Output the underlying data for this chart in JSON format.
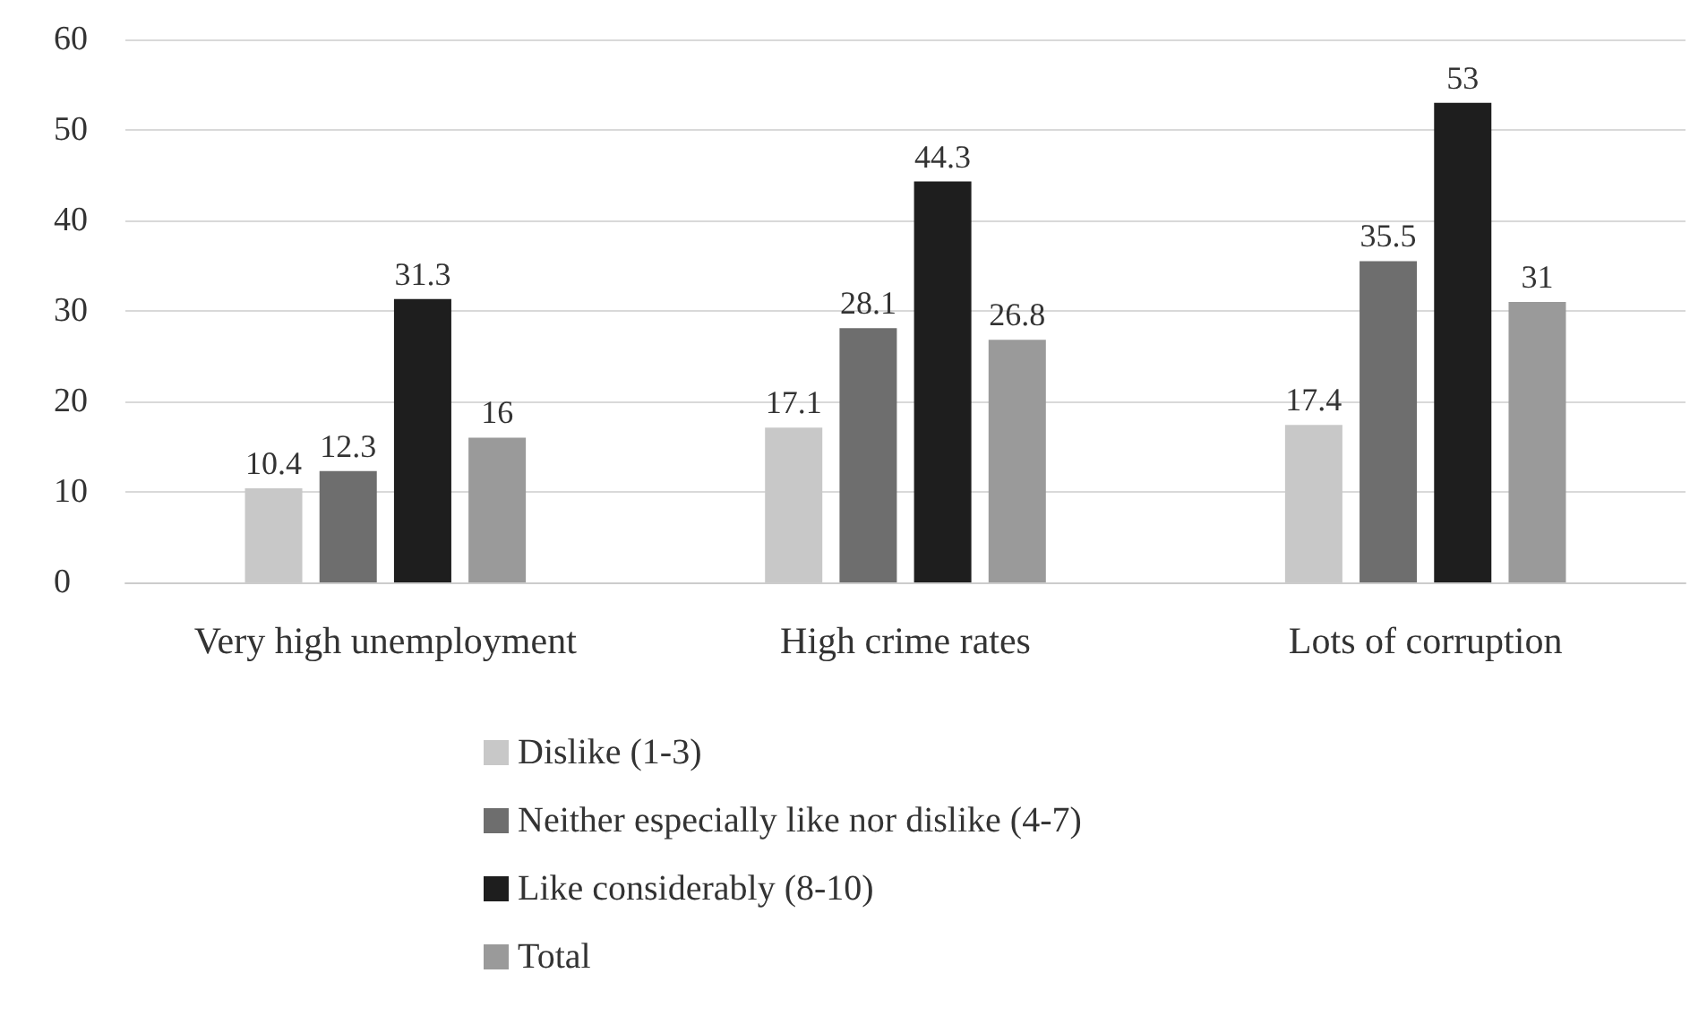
{
  "chart_data": {
    "type": "bar",
    "categories": [
      "Very high unemployment",
      "High crime rates",
      "Lots of corruption"
    ],
    "series": [
      {
        "name": "Dislike (1-3)",
        "color": "#c8c8c8",
        "values": [
          10.4,
          17.1,
          17.4
        ]
      },
      {
        "name": "Neither especially like nor dislike (4-7)",
        "color": "#6e6e6e",
        "values": [
          12.3,
          28.1,
          35.5
        ]
      },
      {
        "name": "Like considerably (8-10)",
        "color": "#1e1e1e",
        "values": [
          31.3,
          44.3,
          53
        ]
      },
      {
        "name": "Total",
        "color": "#9a9a9a",
        "values": [
          16,
          26.8,
          31
        ]
      }
    ],
    "ylim": [
      0,
      60
    ],
    "yticks": [
      0,
      10,
      20,
      30,
      40,
      50,
      60
    ],
    "grid": "y",
    "legend": "bottom",
    "data_labels": true
  }
}
